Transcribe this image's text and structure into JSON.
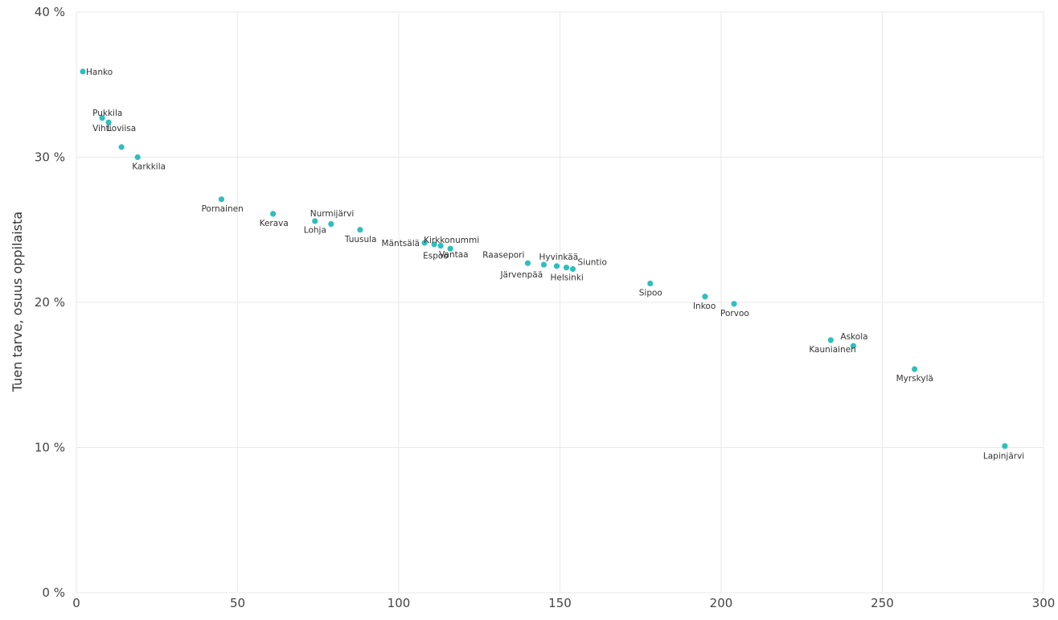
{
  "chart_data": {
    "type": "scatter",
    "title": "",
    "xlabel": "",
    "ylabel": "Tuen tarve, osuus oppilaista",
    "xlim": [
      0,
      300
    ],
    "ylim": [
      0,
      40
    ],
    "x_ticks": [
      "0",
      "50",
      "100",
      "150",
      "200",
      "250",
      "300"
    ],
    "y_ticks": [
      "0 %",
      "10 %",
      "20 %",
      "30 %",
      "40 %"
    ],
    "grid": true,
    "marker_color": "#2ebfbd",
    "points": [
      {
        "label": "Hanko",
        "x": 2,
        "y": 35.9
      },
      {
        "label": "Pukkila",
        "x": 8,
        "y": 32.7
      },
      {
        "label": "Vihti",
        "x": 10,
        "y": 32.4
      },
      {
        "label": "Loviisa",
        "x": 14,
        "y": 30.7
      },
      {
        "label": "Karkkila",
        "x": 19,
        "y": 30.0
      },
      {
        "label": "Pornainen",
        "x": 45,
        "y": 27.1
      },
      {
        "label": "Kerava",
        "x": 61,
        "y": 26.1
      },
      {
        "label": "Nurmijärvi",
        "x": 74,
        "y": 25.6
      },
      {
        "label": "Lohja",
        "x": 79,
        "y": 25.4
      },
      {
        "label": "Tuusula",
        "x": 88,
        "y": 25.0
      },
      {
        "label": "Mäntsälä",
        "x": 108,
        "y": 24.1
      },
      {
        "label": "Kirkkonummi",
        "x": 111,
        "y": 24.0
      },
      {
        "label": "Espoo",
        "x": 113,
        "y": 23.9
      },
      {
        "label": "Vantaa",
        "x": 116,
        "y": 23.7
      },
      {
        "label": "Raasepori",
        "x": 140,
        "y": 22.7
      },
      {
        "label": "Järvenpää",
        "x": 145,
        "y": 22.6
      },
      {
        "label": "Hyvinkää",
        "x": 149,
        "y": 22.5
      },
      {
        "label": "Helsinki",
        "x": 152,
        "y": 22.4
      },
      {
        "label": "Siuntio",
        "x": 154,
        "y": 22.3
      },
      {
        "label": "Sipoo",
        "x": 178,
        "y": 21.3
      },
      {
        "label": "Inkoo",
        "x": 195,
        "y": 20.4
      },
      {
        "label": "Porvoo",
        "x": 204,
        "y": 19.9
      },
      {
        "label": "Kauniainen",
        "x": 234,
        "y": 17.4
      },
      {
        "label": "Askola",
        "x": 241,
        "y": 17.0
      },
      {
        "label": "Myrskylä",
        "x": 260,
        "y": 15.4
      },
      {
        "label": "Lapinjärvi",
        "x": 288,
        "y": 10.1
      }
    ]
  }
}
